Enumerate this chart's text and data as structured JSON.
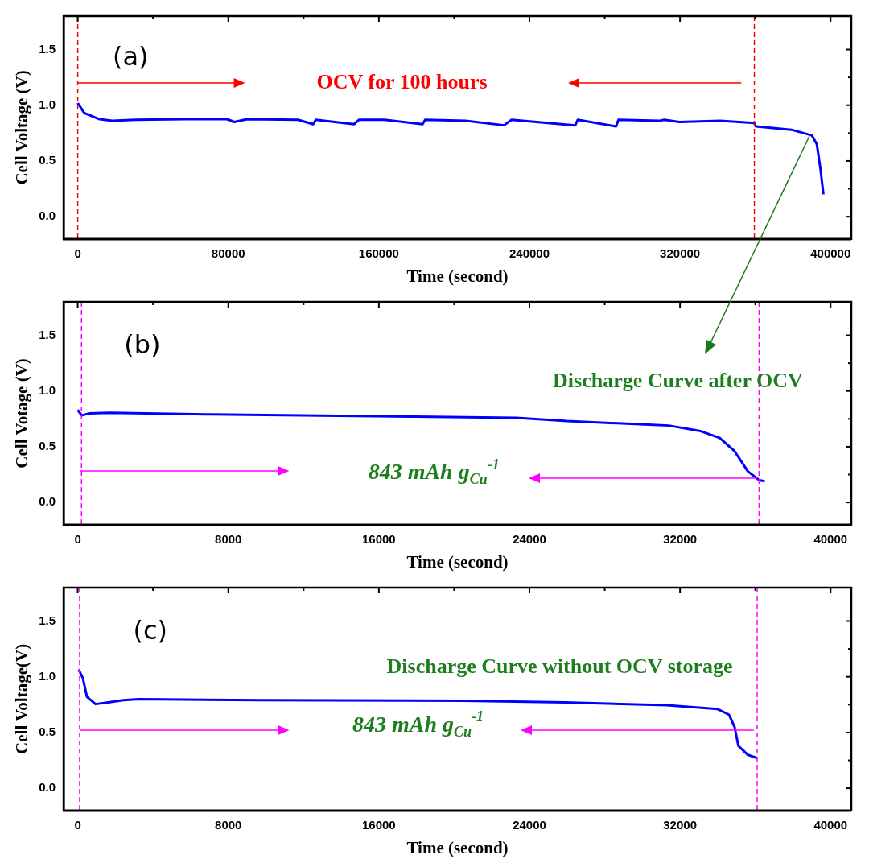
{
  "chart_data": [
    {
      "type": "line",
      "xlabel": "Time (second)",
      "ylabel": "Cell Voltage (V)",
      "series": [
        {
          "color": "#0000ff",
          "x": [
            0,
            3500,
            11600,
            18400,
            30500,
            57600,
            79200,
            83200,
            90000,
            117000,
            125100,
            126500,
            146800,
            149500,
            163000,
            183200,
            184600,
            206200,
            226500,
            230500,
            264300,
            265700,
            286000,
            287300,
            308900,
            311600,
            319700,
            341400,
            359500,
            360300,
            379200,
            390000,
            392700,
            394600,
            396200
          ],
          "values": [
            1.02,
            0.93,
            0.875,
            0.86,
            0.87,
            0.875,
            0.875,
            0.85,
            0.875,
            0.87,
            0.83,
            0.87,
            0.83,
            0.87,
            0.87,
            0.83,
            0.87,
            0.86,
            0.82,
            0.87,
            0.82,
            0.87,
            0.81,
            0.87,
            0.86,
            0.87,
            0.85,
            0.86,
            0.84,
            0.81,
            0.78,
            0.73,
            0.65,
            0.43,
            0.2
          ]
        }
      ],
      "xlim": [
        -7500,
        411000
      ],
      "xticks": [
        0,
        {
          "value": 40000,
          "label": null
        },
        80000,
        {
          "value": 120000,
          "label": null
        },
        160000,
        {
          "value": 200000,
          "label": null
        },
        240000,
        {
          "value": 280000,
          "label": null
        },
        320000,
        {
          "value": 360000,
          "label": null
        },
        400000
      ],
      "ylim": [
        -0.2,
        1.8
      ],
      "yticks": [
        {
          "value": 0,
          "label": "0.0"
        },
        {
          "value": 0.25,
          "label": null
        },
        {
          "value": 0.5,
          "label": "0.5"
        },
        {
          "value": 0.75,
          "label": null
        },
        {
          "value": 1,
          "label": "1.0"
        },
        {
          "value": 1.25,
          "label": null
        },
        {
          "value": 1.5,
          "label": "1.5"
        }
      ],
      "ref_lines": [
        {
          "axis": "x",
          "value": 0,
          "color": "#ff0000",
          "line_style": "dashed"
        },
        {
          "axis": "x",
          "value": 359500,
          "color": "#ff0000",
          "line_style": "dashed"
        }
      ],
      "annotations": [
        "(a)",
        "OCV for 100 hours"
      ]
    },
    {
      "type": "line",
      "xlabel": "Time (second)",
      "ylabel": "Cell Votage (V)",
      "series": [
        {
          "color": "#0000ff",
          "x": [
            0,
            216,
            622,
            1700,
            7100,
            17900,
            23300,
            26000,
            30100,
            31400,
            33100,
            34100,
            34900,
            35600,
            36200,
            36500
          ],
          "values": [
            0.83,
            0.78,
            0.8,
            0.805,
            0.79,
            0.77,
            0.76,
            0.73,
            0.7,
            0.69,
            0.64,
            0.58,
            0.46,
            0.28,
            0.2,
            0.19
          ]
        }
      ],
      "xlim": [
        -750,
        41100
      ],
      "xticks": [
        0,
        {
          "value": 4000,
          "label": null
        },
        8000,
        {
          "value": 12000,
          "label": null
        },
        16000,
        {
          "value": 20000,
          "label": null
        },
        24000,
        {
          "value": 28000,
          "label": null
        },
        32000,
        {
          "value": 36000,
          "label": null
        },
        40000
      ],
      "ylim": [
        -0.2,
        1.8
      ],
      "yticks": [
        {
          "value": 0,
          "label": "0.0"
        },
        {
          "value": 0.25,
          "label": null
        },
        {
          "value": 0.5,
          "label": "0.5"
        },
        {
          "value": 0.75,
          "label": null
        },
        {
          "value": 1,
          "label": "1.0"
        },
        {
          "value": 1.25,
          "label": null
        },
        {
          "value": 1.5,
          "label": "1.5"
        }
      ],
      "ref_lines": [
        {
          "axis": "x",
          "value": 200,
          "color": "#ff00ff",
          "line_style": "dashed"
        },
        {
          "axis": "x",
          "value": 36200,
          "color": "#ff00ff",
          "line_style": "dashed"
        }
      ],
      "annotations": [
        "(b)",
        "Discharge Curve after OCV",
        "843 mAh g$_{Cu}$$^{-1}$"
      ]
    },
    {
      "type": "line",
      "xlabel": "Time (second)",
      "ylabel": "Cell Voltage(V)",
      "series": [
        {
          "color": "#0000ff",
          "x": [
            50,
            270,
            490,
            950,
            1620,
            2430,
            3240,
            9700,
            20500,
            25900,
            31300,
            34000,
            34600,
            34900,
            35100,
            35600,
            36100
          ],
          "values": [
            1.065,
            0.99,
            0.82,
            0.755,
            0.77,
            0.79,
            0.8,
            0.79,
            0.785,
            0.77,
            0.745,
            0.71,
            0.66,
            0.55,
            0.38,
            0.3,
            0.27
          ]
        }
      ],
      "xlim": [
        -750,
        41100
      ],
      "xticks": [
        0,
        {
          "value": 4000,
          "label": null
        },
        8000,
        {
          "value": 12000,
          "label": null
        },
        16000,
        {
          "value": 20000,
          "label": null
        },
        24000,
        {
          "value": 28000,
          "label": null
        },
        32000,
        {
          "value": 36000,
          "label": null
        },
        40000
      ],
      "ylim": [
        -0.2,
        1.8
      ],
      "yticks": [
        {
          "value": 0,
          "label": "0.0"
        },
        {
          "value": 0.25,
          "label": null
        },
        {
          "value": 0.5,
          "label": "0.5"
        },
        {
          "value": 0.75,
          "label": null
        },
        {
          "value": 1,
          "label": "1.0"
        },
        {
          "value": 1.25,
          "label": null
        },
        {
          "value": 1.5,
          "label": "1.5"
        }
      ],
      "ref_lines": [
        {
          "axis": "x",
          "value": 100,
          "color": "#ff00ff",
          "line_style": "dashed"
        },
        {
          "axis": "x",
          "value": 36100,
          "color": "#ff00ff",
          "line_style": "dashed"
        }
      ],
      "annotations": [
        "(c)",
        "Discharge Curve without OCV storage",
        "843 mAh g$_{Cu}$$^{-1}$"
      ]
    }
  ]
}
